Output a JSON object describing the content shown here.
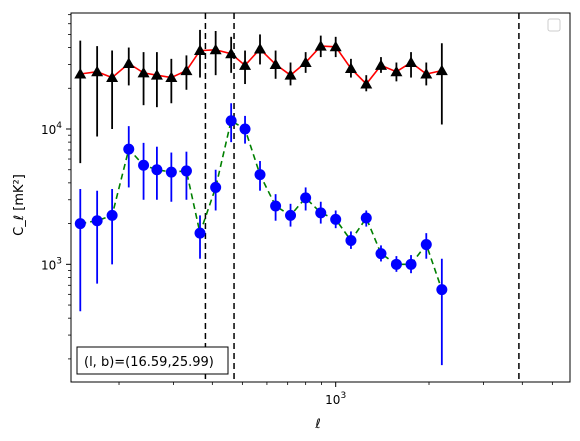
{
  "chart_data": {
    "type": "scatter",
    "xscale": "log",
    "yscale": "log",
    "xlim": [
      140,
      5700
    ],
    "ylim": [
      135,
      72000
    ],
    "xlabel": "ℓ",
    "ylabel": "C_ℓ  [mK²]",
    "x_tick_labels": [
      {
        "value": 1000,
        "base": "10",
        "exp": "3"
      }
    ],
    "y_tick_labels": [
      {
        "value": 1000,
        "base": "10",
        "exp": "3"
      },
      {
        "value": 10000,
        "base": "10",
        "exp": "4"
      }
    ],
    "annotation": "(l, b)=(16.59,25.99)",
    "legend_placement": "upper right",
    "vlines": [
      380,
      470,
      3900
    ],
    "series": [
      {
        "marker": "triangle",
        "color": "#000000",
        "line_color": "#ff0000",
        "line_style": "solid",
        "points": [
          {
            "x": 150,
            "y": 25500,
            "lo": 5600,
            "hi": 45000
          },
          {
            "x": 170,
            "y": 26500,
            "lo": 8800,
            "hi": 41000
          },
          {
            "x": 190,
            "y": 24000,
            "lo": 10000,
            "hi": 38000
          },
          {
            "x": 215,
            "y": 30500,
            "lo": 21000,
            "hi": 40000
          },
          {
            "x": 240,
            "y": 26000,
            "lo": 15000,
            "hi": 37000
          },
          {
            "x": 265,
            "y": 25000,
            "lo": 14500,
            "hi": 37000
          },
          {
            "x": 295,
            "y": 24000,
            "lo": 15500,
            "hi": 33000
          },
          {
            "x": 330,
            "y": 27000,
            "lo": 19500,
            "hi": 35000
          },
          {
            "x": 365,
            "y": 38000,
            "lo": 24000,
            "hi": 54000
          },
          {
            "x": 410,
            "y": 38500,
            "lo": 25000,
            "hi": 53000
          },
          {
            "x": 460,
            "y": 36000,
            "lo": 26000,
            "hi": 48000
          },
          {
            "x": 510,
            "y": 29500,
            "lo": 21500,
            "hi": 38000
          },
          {
            "x": 570,
            "y": 39000,
            "lo": 30000,
            "hi": 50000
          },
          {
            "x": 640,
            "y": 30000,
            "lo": 23500,
            "hi": 38000
          },
          {
            "x": 715,
            "y": 25000,
            "lo": 21000,
            "hi": 31000
          },
          {
            "x": 800,
            "y": 31000,
            "lo": 26000,
            "hi": 37000
          },
          {
            "x": 895,
            "y": 41000,
            "lo": 34000,
            "hi": 49000
          },
          {
            "x": 1000,
            "y": 40500,
            "lo": 34000,
            "hi": 48000
          },
          {
            "x": 1120,
            "y": 28000,
            "lo": 24000,
            "hi": 33000
          },
          {
            "x": 1255,
            "y": 21500,
            "lo": 19000,
            "hi": 25000
          },
          {
            "x": 1400,
            "y": 29500,
            "lo": 26000,
            "hi": 34000
          },
          {
            "x": 1570,
            "y": 26500,
            "lo": 22500,
            "hi": 31000
          },
          {
            "x": 1750,
            "y": 31000,
            "lo": 24000,
            "hi": 37000
          },
          {
            "x": 1960,
            "y": 25500,
            "lo": 21000,
            "hi": 31000
          },
          {
            "x": 2200,
            "y": 27000,
            "lo": 10800,
            "hi": 43000
          }
        ]
      },
      {
        "marker": "circle",
        "color": "#0000ff",
        "line_color": "#008000",
        "line_style": "dashed",
        "points": [
          {
            "x": 150,
            "y": 2000,
            "lo": 450,
            "hi": 3600
          },
          {
            "x": 170,
            "y": 2100,
            "lo": 720,
            "hi": 3500
          },
          {
            "x": 190,
            "y": 2300,
            "lo": 1000,
            "hi": 3600
          },
          {
            "x": 215,
            "y": 7100,
            "lo": 3700,
            "hi": 10500
          },
          {
            "x": 240,
            "y": 5400,
            "lo": 3000,
            "hi": 7900
          },
          {
            "x": 265,
            "y": 5000,
            "lo": 3000,
            "hi": 7400
          },
          {
            "x": 295,
            "y": 4800,
            "lo": 2900,
            "hi": 6700
          },
          {
            "x": 330,
            "y": 4900,
            "lo": 3000,
            "hi": 6800
          },
          {
            "x": 365,
            "y": 1700,
            "lo": 1100,
            "hi": 2300
          },
          {
            "x": 410,
            "y": 3700,
            "lo": 2500,
            "hi": 5000
          },
          {
            "x": 460,
            "y": 11500,
            "lo": 8000,
            "hi": 15500
          },
          {
            "x": 510,
            "y": 10000,
            "lo": 7800,
            "hi": 12500
          },
          {
            "x": 570,
            "y": 4600,
            "lo": 3500,
            "hi": 5800
          },
          {
            "x": 640,
            "y": 2700,
            "lo": 2100,
            "hi": 3300
          },
          {
            "x": 715,
            "y": 2300,
            "lo": 1900,
            "hi": 2800
          },
          {
            "x": 800,
            "y": 3100,
            "lo": 2500,
            "hi": 3700
          },
          {
            "x": 895,
            "y": 2400,
            "lo": 2000,
            "hi": 2900
          },
          {
            "x": 1000,
            "y": 2150,
            "lo": 1850,
            "hi": 2500
          },
          {
            "x": 1120,
            "y": 1500,
            "lo": 1300,
            "hi": 1750
          },
          {
            "x": 1255,
            "y": 2200,
            "lo": 1900,
            "hi": 2500
          },
          {
            "x": 1400,
            "y": 1200,
            "lo": 1050,
            "hi": 1380
          },
          {
            "x": 1570,
            "y": 1000,
            "lo": 880,
            "hi": 1150
          },
          {
            "x": 1750,
            "y": 1000,
            "lo": 860,
            "hi": 1170
          },
          {
            "x": 1960,
            "y": 1400,
            "lo": 1100,
            "hi": 1700
          },
          {
            "x": 2200,
            "y": 650,
            "lo": 180,
            "hi": 1100
          }
        ]
      }
    ]
  }
}
